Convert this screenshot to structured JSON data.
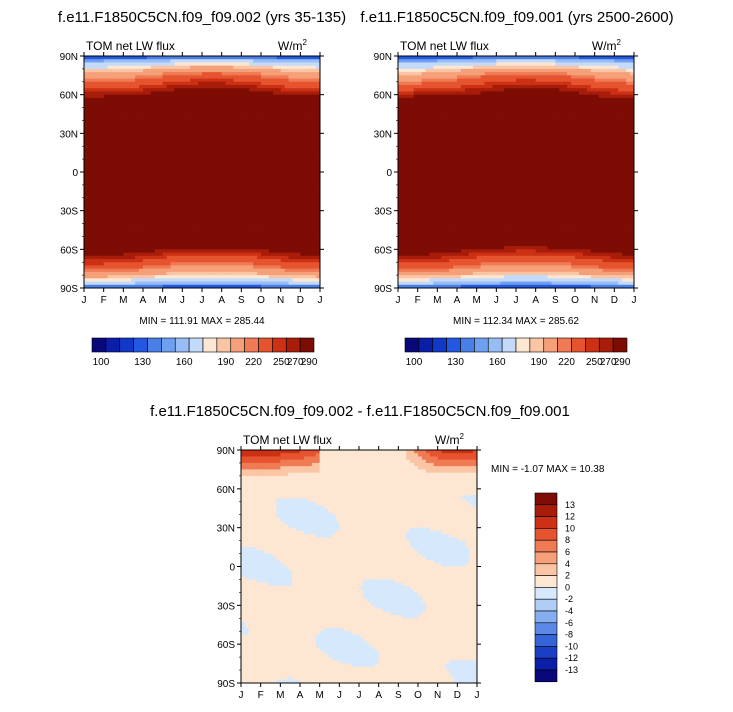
{
  "palette": {
    "ramp": [
      "#08087a",
      "#0a1ea8",
      "#1238c8",
      "#2558e0",
      "#4a7fe8",
      "#6f9ff0",
      "#98bdf5",
      "#c4dafa",
      "#fde6d2",
      "#fac5a4",
      "#f6a07a",
      "#f07a54",
      "#e6542f",
      "#cc3115",
      "#a81c0a",
      "#7c0c04"
    ]
  },
  "panels": {
    "left": {
      "title": "f.e11.F1850C5CN.f09_f09.002 (yrs 35-135)",
      "subtitle_left": "TOM net LW flux",
      "units_base": "W/m",
      "units_sup": "2",
      "minmax": "MIN = 111.91   MAX = 285.44"
    },
    "right": {
      "title": "f.e11.F1850C5CN.f09_f09.001 (yrs 2500-2600)",
      "subtitle_left": "TOM net LW flux",
      "units_base": "W/m",
      "units_sup": "2",
      "minmax": "MIN = 112.34   MAX = 285.62"
    },
    "diff": {
      "title": "f.e11.F1850C5CN.f09_f09.002 - f.e11.F1850C5CN.f09_f09.001",
      "subtitle_left": "TOM net LW flux",
      "units_base": "W/m",
      "units_sup": "2",
      "minmax": "MIN =  -1.07   MAX =  10.38"
    }
  },
  "chart_data": [
    {
      "type": "heatmap",
      "title": "f.e11.F1850C5CN.f09_f09.002 (yrs 35-135)",
      "field": "TOM net LW flux",
      "units": "W/m2",
      "x": [
        "J",
        "F",
        "M",
        "A",
        "M",
        "J",
        "J",
        "A",
        "S",
        "O",
        "N",
        "D",
        "J"
      ],
      "y_ticks": [
        "90N",
        "60N",
        "30N",
        "0",
        "30S",
        "60S",
        "90S"
      ],
      "ylim": [
        -90,
        90
      ],
      "min": 111.91,
      "max": 285.44,
      "colorbar_labels": [
        "100",
        "130",
        "160",
        "190",
        "220",
        "250",
        "270",
        "290"
      ],
      "levels": [
        100,
        110,
        120,
        130,
        140,
        150,
        160,
        180,
        190,
        200,
        220,
        230,
        250,
        260,
        270,
        290
      ]
    },
    {
      "type": "heatmap",
      "title": "f.e11.F1850C5CN.f09_f09.001 (yrs 2500-2600)",
      "field": "TOM net LW flux",
      "units": "W/m2",
      "x": [
        "J",
        "F",
        "M",
        "A",
        "M",
        "J",
        "J",
        "A",
        "S",
        "O",
        "N",
        "D",
        "J"
      ],
      "y_ticks": [
        "90N",
        "60N",
        "30N",
        "0",
        "30S",
        "60S",
        "90S"
      ],
      "ylim": [
        -90,
        90
      ],
      "min": 112.34,
      "max": 285.62,
      "colorbar_labels": [
        "100",
        "130",
        "160",
        "190",
        "220",
        "250",
        "270",
        "290"
      ],
      "levels": [
        100,
        110,
        120,
        130,
        140,
        150,
        160,
        180,
        190,
        200,
        220,
        230,
        250,
        260,
        270,
        290
      ]
    },
    {
      "type": "heatmap",
      "title": "f.e11.F1850C5CN.f09_f09.002 - f.e11.F1850C5CN.f09_f09.001",
      "field": "TOM net LW flux",
      "units": "W/m2",
      "x": [
        "J",
        "F",
        "M",
        "A",
        "M",
        "J",
        "J",
        "A",
        "S",
        "O",
        "N",
        "D",
        "J"
      ],
      "y_ticks": [
        "90N",
        "60N",
        "30N",
        "0",
        "30S",
        "60S",
        "90S"
      ],
      "ylim": [
        -90,
        90
      ],
      "min": -1.07,
      "max": 10.38,
      "colorbar_labels": [
        "13",
        "12",
        "10",
        "8",
        "6",
        "4",
        "2",
        "0",
        "-2",
        "-4",
        "-6",
        "-8",
        "-10",
        "-12",
        "-13"
      ]
    }
  ]
}
